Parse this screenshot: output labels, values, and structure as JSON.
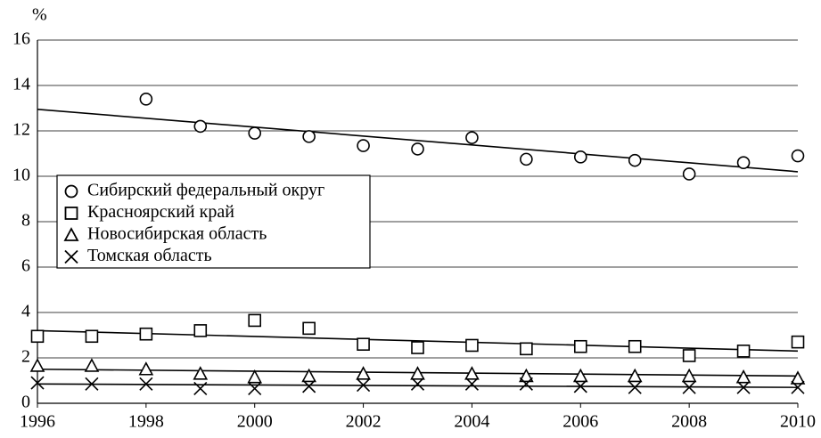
{
  "chart_data": {
    "type": "scatter",
    "y_label": "%",
    "x": [
      1996,
      1997,
      1998,
      1999,
      2000,
      2001,
      2002,
      2003,
      2004,
      2005,
      2006,
      2007,
      2008,
      2009,
      2010
    ],
    "xlim": [
      1996,
      2010
    ],
    "xticks": [
      1996,
      1998,
      2000,
      2002,
      2004,
      2006,
      2008,
      2010
    ],
    "ylim": [
      0,
      16
    ],
    "yticks": [
      0,
      2,
      4,
      6,
      8,
      10,
      12,
      14,
      16
    ],
    "grid": true,
    "legend": "center left",
    "series": [
      {
        "name": "Сибирский федеральный округ",
        "marker": "circle",
        "color": "#000000",
        "values": [
          null,
          null,
          13.4,
          12.2,
          11.9,
          11.75,
          11.35,
          11.2,
          11.7,
          10.75,
          10.85,
          10.7,
          10.1,
          10.6,
          10.9
        ],
        "trend": [
          12.95,
          10.2
        ]
      },
      {
        "name": "Красноярский край",
        "marker": "square",
        "color": "#000000",
        "values": [
          2.95,
          2.95,
          3.05,
          3.2,
          3.65,
          3.3,
          2.6,
          2.45,
          2.55,
          2.4,
          2.5,
          2.5,
          2.1,
          2.3,
          2.7
        ],
        "trend": [
          3.2,
          2.3
        ]
      },
      {
        "name": "Новосибирская область",
        "marker": "triangle",
        "color": "#000000",
        "values": [
          1.65,
          1.65,
          1.5,
          1.3,
          1.15,
          1.2,
          1.3,
          1.3,
          1.3,
          1.2,
          1.2,
          1.2,
          1.2,
          1.15,
          1.1
        ],
        "trend": [
          1.5,
          1.2
        ]
      },
      {
        "name": "Томская область",
        "marker": "cross",
        "color": "#000000",
        "values": [
          0.9,
          0.85,
          0.85,
          0.65,
          0.65,
          0.75,
          0.8,
          0.85,
          0.85,
          0.85,
          0.75,
          0.7,
          0.7,
          0.7,
          0.7
        ],
        "trend": [
          0.85,
          0.7
        ]
      }
    ]
  }
}
